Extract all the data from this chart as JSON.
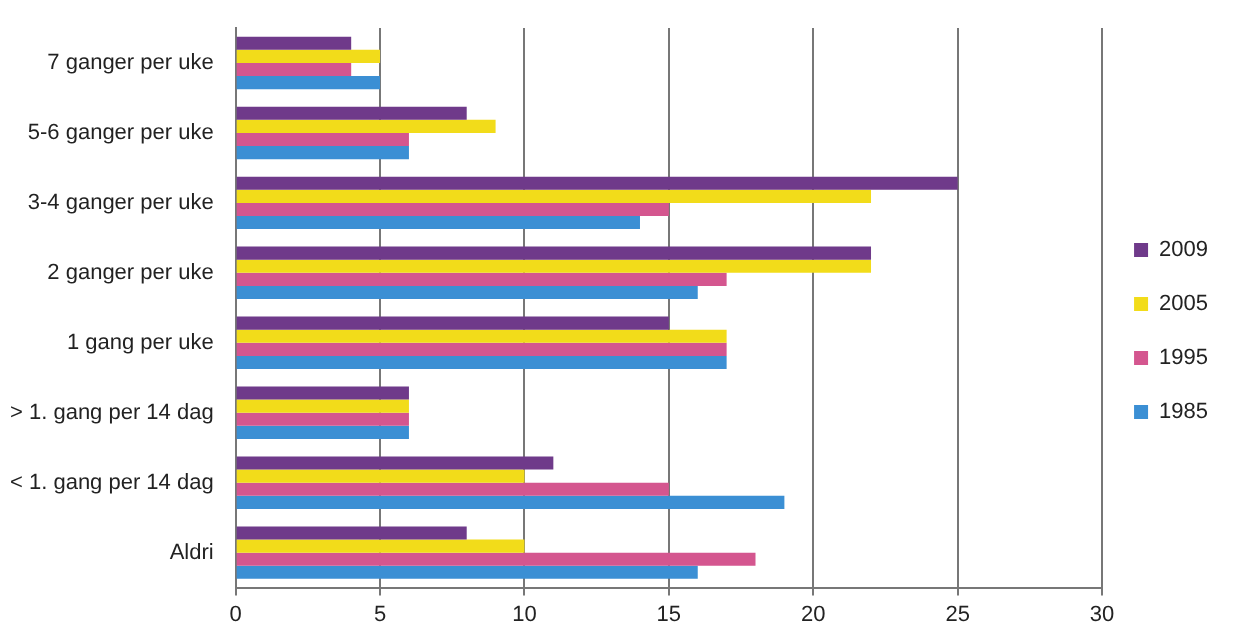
{
  "chart_data": {
    "type": "bar",
    "orientation": "horizontal",
    "categories": [
      "7 ganger per uke",
      "5-6 ganger per uke",
      "3-4 ganger per uke",
      "2 ganger per uke",
      "1 gang per uke",
      "> 1. gang per 14 dag",
      "< 1. gang per 14 dag",
      "Aldri"
    ],
    "series": [
      {
        "name": "2009",
        "color": "#6f3a8a",
        "values": [
          4,
          8,
          25,
          22,
          15,
          6,
          11,
          8
        ]
      },
      {
        "name": "2005",
        "color": "#f2dc1a",
        "values": [
          5,
          9,
          22,
          22,
          17,
          6,
          10,
          10
        ]
      },
      {
        "name": "1995",
        "color": "#d4568f",
        "values": [
          4,
          6,
          15,
          17,
          17,
          6,
          15,
          18
        ]
      },
      {
        "name": "1985",
        "color": "#3b8fd4",
        "values": [
          5,
          6,
          14,
          16,
          17,
          6,
          19,
          16
        ]
      }
    ],
    "xlim": [
      0,
      30
    ],
    "xticks": [
      0,
      5,
      10,
      15,
      20,
      25,
      30
    ],
    "grid": "x",
    "legend": "right"
  }
}
